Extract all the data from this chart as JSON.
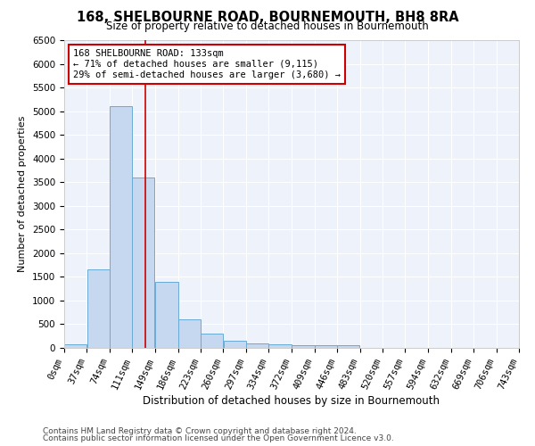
{
  "title": "168, SHELBOURNE ROAD, BOURNEMOUTH, BH8 8RA",
  "subtitle": "Size of property relative to detached houses in Bournemouth",
  "xlabel": "Distribution of detached houses by size in Bournemouth",
  "ylabel": "Number of detached properties",
  "footnote1": "Contains HM Land Registry data © Crown copyright and database right 2024.",
  "footnote2": "Contains public sector information licensed under the Open Government Licence v3.0.",
  "bin_edges": [
    0,
    37,
    74,
    111,
    149,
    186,
    223,
    260,
    297,
    334,
    372,
    409,
    446,
    483,
    520,
    557,
    594,
    632,
    669,
    706,
    743
  ],
  "bar_heights": [
    75,
    1650,
    5100,
    3600,
    1400,
    600,
    300,
    150,
    100,
    75,
    50,
    50,
    50,
    0,
    0,
    0,
    0,
    0,
    0,
    0
  ],
  "bar_color": "#c5d8f0",
  "bar_edgecolor": "#6aaad4",
  "bg_color": "#eef2fb",
  "vline_x": 133,
  "vline_color": "#cc0000",
  "annotation_text": "168 SHELBOURNE ROAD: 133sqm\n← 71% of detached houses are smaller (9,115)\n29% of semi-detached houses are larger (3,680) →",
  "annotation_box_color": "#cc0000",
  "ylim": [
    0,
    6500
  ],
  "yticks": [
    0,
    500,
    1000,
    1500,
    2000,
    2500,
    3000,
    3500,
    4000,
    4500,
    5000,
    5500,
    6000,
    6500
  ],
  "tick_label_fontsize": 7.5,
  "title_fontsize": 10.5,
  "subtitle_fontsize": 8.5,
  "xlabel_fontsize": 8.5,
  "ylabel_fontsize": 8.0,
  "annotation_fontsize": 7.5
}
